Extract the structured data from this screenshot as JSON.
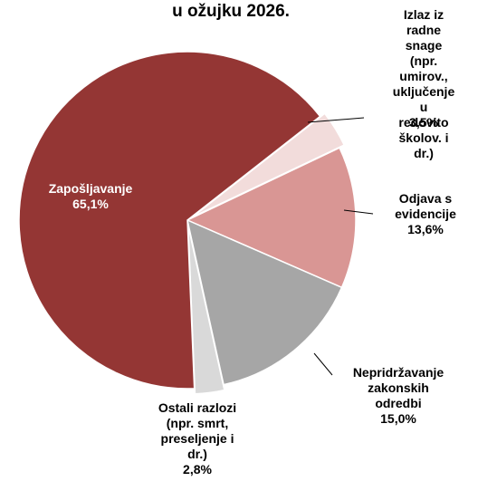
{
  "chart_data": {
    "type": "pie",
    "title": "u ožujku 2026.",
    "categories": [
      "Izlaz iz\nradne snage\n(npr.\numirov.,\nuključenje u\nredovito\nškolov. i dr.)",
      "Odjava s\nevidencije",
      "Nepridržavanje\nzakonskih\nodredbi",
      "Ostali razlozi\n(npr. smrt,\npreseljenje i\ndr.)",
      "Zapošljavanje"
    ],
    "values": [
      3.5,
      13.6,
      15.0,
      2.8,
      65.1
    ],
    "value_labels": [
      "3,5%",
      "13,6%",
      "15,0%",
      "2,8%",
      "65,1%"
    ],
    "colors": [
      "#f2dcdb",
      "#d99694",
      "#a6a6a6",
      "#d9d9d9",
      "#943634"
    ]
  }
}
